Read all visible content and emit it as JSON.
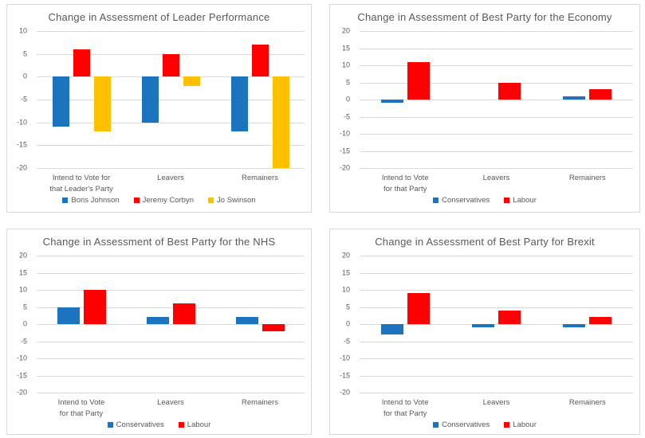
{
  "colors": {
    "conservative_blue": "#1B74BD",
    "labour_red": "#FF0000",
    "libdem_yellow": "#FFC000",
    "title_text": "#595959",
    "axis_text": "#595959",
    "gridline": "#D9D9D9",
    "panel_border": "#D9D9D9",
    "background": "#FFFFFF"
  },
  "chart_data": [
    {
      "type": "bar",
      "title": "Change in Assessment of Leader Performance",
      "categories": [
        "Intend to Vote for\nthat Leader's Party",
        "Leavers",
        "Remainers"
      ],
      "series": [
        {
          "name": "Boris Johnson",
          "color": "#1B74BD",
          "values": [
            -11,
            -10,
            -12
          ]
        },
        {
          "name": "Jeremy Corbyn",
          "color": "#FF0000",
          "values": [
            6,
            5,
            7
          ]
        },
        {
          "name": "Jo Swinson",
          "color": "#FFC000",
          "values": [
            -12,
            -2,
            -20
          ]
        }
      ],
      "ylim": [
        -20,
        10
      ],
      "yticks": [
        10,
        5,
        0,
        -5,
        -10,
        -15,
        -20
      ],
      "grid": true,
      "legend_position": "bottom"
    },
    {
      "type": "bar",
      "title": "Change in Assessment of Best Party for the Economy",
      "categories": [
        "Intend to Vote\nfor that Party",
        "Leavers",
        "Remainers"
      ],
      "series": [
        {
          "name": "Conservatives",
          "color": "#1B74BD",
          "values": [
            -1,
            0,
            1
          ]
        },
        {
          "name": "Labour",
          "color": "#FF0000",
          "values": [
            11,
            5,
            3
          ]
        }
      ],
      "ylim": [
        -20,
        20
      ],
      "yticks": [
        20,
        15,
        10,
        5,
        0,
        -5,
        -10,
        -15,
        -20
      ],
      "grid": true,
      "legend_position": "bottom"
    },
    {
      "type": "bar",
      "title": "Change in Assessment of Best Party for the NHS",
      "categories": [
        "Intend to Vote\nfor that Party",
        "Leavers",
        "Remainers"
      ],
      "series": [
        {
          "name": "Conservatives",
          "color": "#1B74BD",
          "values": [
            5,
            2,
            2
          ]
        },
        {
          "name": "Labour",
          "color": "#FF0000",
          "values": [
            10,
            6,
            -2
          ]
        }
      ],
      "ylim": [
        -20,
        20
      ],
      "yticks": [
        20,
        15,
        10,
        5,
        0,
        -5,
        -10,
        -15,
        -20
      ],
      "grid": true,
      "legend_position": "bottom"
    },
    {
      "type": "bar",
      "title": "Change in Assessment of Best Party for Brexit",
      "categories": [
        "Intend to Vote\nfor that Party",
        "Leavers",
        "Remainers"
      ],
      "series": [
        {
          "name": "Conservatives",
          "color": "#1B74BD",
          "values": [
            -3,
            -1,
            -1
          ]
        },
        {
          "name": "Labour",
          "color": "#FF0000",
          "values": [
            9,
            4,
            2
          ]
        }
      ],
      "ylim": [
        -20,
        20
      ],
      "yticks": [
        20,
        15,
        10,
        5,
        0,
        -5,
        -10,
        -15,
        -20
      ],
      "grid": true,
      "legend_position": "bottom"
    }
  ]
}
